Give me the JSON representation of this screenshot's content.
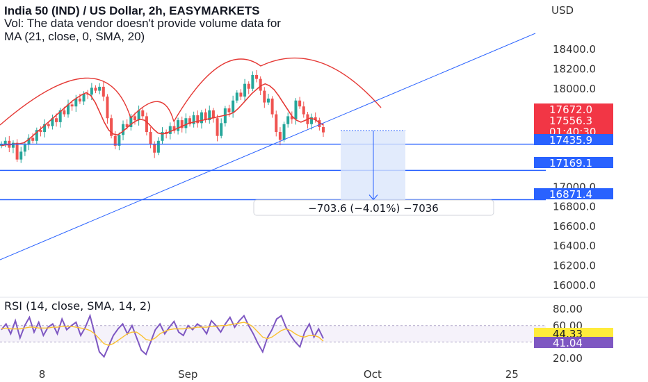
{
  "header": {
    "title": "India 50 (IND) / US Dollar, 2h, EASYMARKETS",
    "volume_note": "Vol: The data vendor doesn't provide volume data for",
    "ma_label": "MA (21, close, 0, SMA, 20)"
  },
  "chart_data": {
    "type": "line",
    "instrument": "India 50 (IND) / US Dollar",
    "interval": "2h",
    "currency_label": "USD",
    "price_axis": {
      "range": [
        15900,
        18620
      ],
      "ticks": [
        16000.0,
        16200.0,
        16400.0,
        16600.0,
        16800.0,
        17000.0,
        17200.0,
        17400.0,
        17600.0,
        17800.0,
        18000.0,
        18200.0,
        18400.0
      ],
      "tick_labels": [
        "16000.0",
        "16200.0",
        "16400.0",
        "16600.0",
        "16800.0",
        "17000.0",
        "",
        "",
        "",
        "17800.0",
        "18000.0",
        "18200.0",
        "18400.0"
      ]
    },
    "x_axis": {
      "labels": [
        {
          "text": "8",
          "pos": 0.065
        },
        {
          "text": "Sep",
          "pos": 0.29
        },
        {
          "text": "Oct",
          "pos": 0.575
        },
        {
          "text": "25",
          "pos": 0.79
        }
      ]
    },
    "price_series": [
      17440,
      17470,
      17400,
      17450,
      17280,
      17360,
      17430,
      17500,
      17470,
      17580,
      17560,
      17640,
      17620,
      17700,
      17660,
      17780,
      17740,
      17840,
      17820,
      17900,
      17870,
      17950,
      17940,
      18010,
      17980,
      18020,
      17920,
      17700,
      17520,
      17420,
      17530,
      17640,
      17610,
      17720,
      17680,
      17780,
      17720,
      17560,
      17440,
      17350,
      17470,
      17560,
      17540,
      17620,
      17570,
      17680,
      17600,
      17700,
      17640,
      17730,
      17650,
      17760,
      17680,
      17780,
      17700,
      17520,
      17650,
      17800,
      17760,
      17880,
      17960,
      17920,
      18050,
      18000,
      18140,
      18100,
      17980,
      17860,
      17900,
      17740,
      17560,
      17480,
      17640,
      17720,
      17690,
      17880,
      17820,
      17740,
      17640,
      17710,
      17680,
      17610,
      17556
    ],
    "ma_series": [
      17420,
      17430,
      17430,
      17440,
      17440,
      17450,
      17480,
      17520,
      17560,
      17600,
      17640,
      17680,
      17720,
      17760,
      17800,
      17840,
      17880,
      17910,
      17940,
      17960,
      17930,
      17860,
      17760,
      17660,
      17580,
      17540,
      17530,
      17560,
      17600,
      17640,
      17670,
      17690,
      17680,
      17640,
      17590,
      17550,
      17540,
      17550,
      17570,
      17590,
      17610,
      17630,
      17650,
      17660,
      17670,
      17680,
      17690,
      17700,
      17710,
      17720,
      17730,
      17740,
      17760,
      17800,
      17850,
      17900,
      17950,
      17990,
      18030,
      18050,
      18030,
      17990,
      17930,
      17860,
      17790,
      17720,
      17680,
      17660,
      17680,
      17700,
      17690,
      17660,
      17630
    ],
    "horizontal_levels": [
      17435.9,
      17169.1,
      16871.4
    ],
    "price_badges": [
      {
        "value": "17672.0",
        "color": "#f23645"
      },
      {
        "value": "17556.3",
        "sub": "01:40:30",
        "color": "#f23645"
      },
      {
        "value": "17435.9",
        "color": "#2962ff"
      },
      {
        "value": "17169.1",
        "color": "#2962ff"
      },
      {
        "value": "16871.4",
        "color": "#2962ff"
      }
    ],
    "measurement": {
      "from": 17575,
      "to": 16871.4,
      "label": "−703.6 (−4.01%) −7036"
    },
    "rsi": {
      "label": "RSI (14, close, SMA, 14, 2)",
      "range": [
        15,
        86
      ],
      "ticks": [
        20.0,
        40.0,
        60.0,
        80.0
      ],
      "tick_labels": [
        "20.00",
        "",
        "60.00",
        "80.00"
      ],
      "band": [
        40,
        60
      ],
      "values": [
        55,
        62,
        50,
        66,
        45,
        60,
        70,
        52,
        64,
        48,
        58,
        62,
        50,
        68,
        55,
        60,
        64,
        48,
        58,
        72,
        50,
        28,
        22,
        35,
        48,
        56,
        62,
        50,
        60,
        45,
        30,
        25,
        40,
        55,
        62,
        50,
        58,
        65,
        52,
        48,
        60,
        55,
        62,
        58,
        50,
        66,
        60,
        52,
        62,
        70,
        58,
        66,
        72,
        60,
        50,
        38,
        28,
        45,
        55,
        68,
        72,
        58,
        48,
        40,
        34,
        52,
        62,
        46,
        56,
        44.3
      ],
      "ma": [
        56,
        57,
        56,
        56,
        56,
        57,
        58,
        58,
        57,
        57,
        57,
        58,
        58,
        59,
        59,
        59,
        58,
        57,
        56,
        54,
        50,
        44,
        38,
        36,
        38,
        42,
        46,
        50,
        52,
        52,
        48,
        43,
        42,
        45,
        50,
        53,
        55,
        56,
        56,
        56,
        57,
        57,
        58,
        58,
        58,
        59,
        59,
        60,
        60,
        61,
        62,
        63,
        64,
        62,
        58,
        52,
        46,
        44,
        46,
        50,
        54,
        56,
        54,
        50,
        47,
        46,
        48,
        48,
        46,
        41
      ],
      "badges": [
        {
          "value": "44.33",
          "color": "#ffeb3b",
          "text_color": "#131722"
        },
        {
          "value": "41.04",
          "color": "#7e57c2",
          "text_color": "#ffffff"
        }
      ]
    },
    "colors": {
      "candle_up": "#26a69a",
      "candle_down": "#ef5350",
      "ma": "#e53935",
      "arc": "#e53935",
      "trendline": "#2962ff",
      "level": "#2962ff",
      "rsi": "#7e57c2",
      "rsi_ma": "#fbc02d",
      "measure_fill": "#dbe6fb"
    }
  }
}
